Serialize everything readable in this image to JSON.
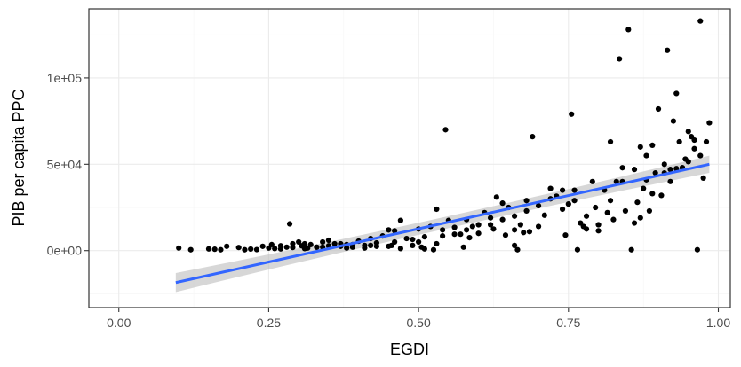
{
  "chart_data": {
    "type": "scatter",
    "title": "",
    "xlabel": "EGDI",
    "ylabel": "PIB per capita PPC",
    "xlim": [
      -0.05,
      1.02
    ],
    "ylim": [
      -33000,
      140000
    ],
    "x_ticks": [
      {
        "value": 0.0,
        "label": "0.00"
      },
      {
        "value": 0.25,
        "label": "0.25"
      },
      {
        "value": 0.5,
        "label": "0.50"
      },
      {
        "value": 0.75,
        "label": "0.75"
      },
      {
        "value": 1.0,
        "label": "1.00"
      }
    ],
    "y_ticks": [
      {
        "value": 0,
        "label": "0e+00"
      },
      {
        "value": 50000,
        "label": "5e+04"
      },
      {
        "value": 100000,
        "label": "1e+05"
      }
    ],
    "x_minor": [
      0.125,
      0.375,
      0.625,
      0.875
    ],
    "y_minor": [
      -25000,
      25000,
      75000,
      125000
    ],
    "grid": true,
    "legend": "none",
    "colors": {
      "points": "#000000",
      "fit_line": "#3366ff",
      "ribbon": "#bdbdbd",
      "panel_border": "#333333",
      "grid": "#ebebeb"
    },
    "fit": {
      "method": "lm",
      "x": [
        0.095,
        0.985
      ],
      "y": [
        -18500,
        50000
      ],
      "se_halfwidth": [
        5500,
        5000
      ]
    },
    "points": [
      [
        0.1,
        1500
      ],
      [
        0.12,
        500
      ],
      [
        0.15,
        1000
      ],
      [
        0.16,
        800
      ],
      [
        0.17,
        500
      ],
      [
        0.18,
        2500
      ],
      [
        0.2,
        1800
      ],
      [
        0.21,
        500
      ],
      [
        0.22,
        900
      ],
      [
        0.23,
        600
      ],
      [
        0.24,
        2500
      ],
      [
        0.25,
        1500
      ],
      [
        0.255,
        3500
      ],
      [
        0.26,
        1200
      ],
      [
        0.27,
        1000
      ],
      [
        0.28,
        2000
      ],
      [
        0.285,
        15500
      ],
      [
        0.29,
        1800
      ],
      [
        0.3,
        5000
      ],
      [
        0.305,
        2800
      ],
      [
        0.31,
        4000
      ],
      [
        0.315,
        1500
      ],
      [
        0.32,
        3500
      ],
      [
        0.33,
        2000
      ],
      [
        0.34,
        5000
      ],
      [
        0.35,
        6000
      ],
      [
        0.36,
        4000
      ],
      [
        0.37,
        2500
      ],
      [
        0.38,
        3500
      ],
      [
        0.39,
        2000
      ],
      [
        0.4,
        5500
      ],
      [
        0.41,
        3000
      ],
      [
        0.42,
        7000
      ],
      [
        0.43,
        4500
      ],
      [
        0.44,
        8500
      ],
      [
        0.45,
        12000
      ],
      [
        0.455,
        3000
      ],
      [
        0.46,
        11500
      ],
      [
        0.47,
        17500
      ],
      [
        0.48,
        7000
      ],
      [
        0.49,
        6500
      ],
      [
        0.5,
        5000
      ],
      [
        0.505,
        2000
      ],
      [
        0.51,
        8000
      ],
      [
        0.52,
        14000
      ],
      [
        0.525,
        500
      ],
      [
        0.53,
        24000
      ],
      [
        0.54,
        12000
      ],
      [
        0.545,
        70000
      ],
      [
        0.55,
        17500
      ],
      [
        0.56,
        13500
      ],
      [
        0.57,
        9500
      ],
      [
        0.575,
        2000
      ],
      [
        0.58,
        18000
      ],
      [
        0.585,
        7500
      ],
      [
        0.59,
        14000
      ],
      [
        0.6,
        10000
      ],
      [
        0.61,
        22000
      ],
      [
        0.62,
        19000
      ],
      [
        0.625,
        12500
      ],
      [
        0.63,
        31000
      ],
      [
        0.64,
        18000
      ],
      [
        0.645,
        9000
      ],
      [
        0.65,
        25000
      ],
      [
        0.66,
        12000
      ],
      [
        0.665,
        500
      ],
      [
        0.67,
        15000
      ],
      [
        0.675,
        10500
      ],
      [
        0.68,
        29000
      ],
      [
        0.685,
        11000
      ],
      [
        0.69,
        66000
      ],
      [
        0.7,
        26000
      ],
      [
        0.71,
        20500
      ],
      [
        0.72,
        36000
      ],
      [
        0.73,
        31500
      ],
      [
        0.74,
        24000
      ],
      [
        0.745,
        9000
      ],
      [
        0.75,
        27000
      ],
      [
        0.755,
        79000
      ],
      [
        0.76,
        35000
      ],
      [
        0.765,
        500
      ],
      [
        0.77,
        16000
      ],
      [
        0.775,
        14000
      ],
      [
        0.78,
        20000
      ],
      [
        0.79,
        40000
      ],
      [
        0.795,
        25000
      ],
      [
        0.8,
        11500
      ],
      [
        0.81,
        35000
      ],
      [
        0.815,
        22000
      ],
      [
        0.82,
        63000
      ],
      [
        0.825,
        18000
      ],
      [
        0.83,
        40000
      ],
      [
        0.835,
        111000
      ],
      [
        0.84,
        48000
      ],
      [
        0.845,
        23000
      ],
      [
        0.85,
        128000
      ],
      [
        0.855,
        500
      ],
      [
        0.86,
        16000
      ],
      [
        0.865,
        28000
      ],
      [
        0.87,
        60000
      ],
      [
        0.875,
        36000
      ],
      [
        0.88,
        41000
      ],
      [
        0.885,
        23000
      ],
      [
        0.89,
        61000
      ],
      [
        0.895,
        45000
      ],
      [
        0.9,
        82000
      ],
      [
        0.905,
        32000
      ],
      [
        0.91,
        50000
      ],
      [
        0.915,
        116000
      ],
      [
        0.92,
        47000
      ],
      [
        0.925,
        75000
      ],
      [
        0.93,
        91000
      ],
      [
        0.935,
        63000
      ],
      [
        0.94,
        48000
      ],
      [
        0.945,
        53000
      ],
      [
        0.95,
        69000
      ],
      [
        0.955,
        66000
      ],
      [
        0.96,
        59000
      ],
      [
        0.965,
        500
      ],
      [
        0.97,
        133000
      ],
      [
        0.975,
        42000
      ],
      [
        0.98,
        63000
      ],
      [
        0.985,
        74000
      ],
      [
        0.86,
        47000
      ],
      [
        0.88,
        55000
      ],
      [
        0.91,
        45000
      ],
      [
        0.93,
        47500
      ],
      [
        0.95,
        51500
      ],
      [
        0.72,
        30000
      ],
      [
        0.74,
        35000
      ],
      [
        0.68,
        23000
      ],
      [
        0.66,
        20000
      ],
      [
        0.64,
        27500
      ],
      [
        0.62,
        15000
      ],
      [
        0.58,
        12000
      ],
      [
        0.56,
        9500
      ],
      [
        0.53,
        4000
      ],
      [
        0.51,
        1000
      ],
      [
        0.49,
        3000
      ],
      [
        0.47,
        1200
      ],
      [
        0.45,
        2500
      ],
      [
        0.43,
        2500
      ],
      [
        0.41,
        1500
      ],
      [
        0.39,
        3500
      ],
      [
        0.37,
        4000
      ],
      [
        0.35,
        2800
      ],
      [
        0.33,
        2000
      ],
      [
        0.31,
        1200
      ],
      [
        0.29,
        4000
      ],
      [
        0.27,
        2800
      ],
      [
        0.78,
        12500
      ],
      [
        0.82,
        29000
      ],
      [
        0.84,
        40000
      ],
      [
        0.87,
        19000
      ],
      [
        0.89,
        33000
      ],
      [
        0.92,
        40000
      ],
      [
        0.94,
        48000
      ],
      [
        0.96,
        64000
      ],
      [
        0.97,
        55000
      ],
      [
        0.8,
        15000
      ],
      [
        0.76,
        29000
      ],
      [
        0.7,
        14000
      ],
      [
        0.66,
        3000
      ],
      [
        0.6,
        15000
      ],
      [
        0.54,
        8500
      ],
      [
        0.5,
        12500
      ],
      [
        0.46,
        5000
      ],
      [
        0.42,
        3000
      ],
      [
        0.38,
        1500
      ],
      [
        0.34,
        2000
      ]
    ]
  }
}
